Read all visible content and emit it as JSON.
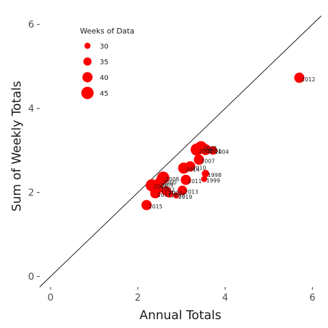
{
  "chart_data": {
    "type": "scatter",
    "title": "",
    "xlabel": "Annual Totals",
    "ylabel": "Sum of Weekly Totals",
    "xlim": [
      -0.25,
      6.2
    ],
    "ylim": [
      -0.25,
      6.45
    ],
    "x_ticks": [
      0,
      2,
      4,
      6
    ],
    "y_ticks": [
      0,
      2,
      4,
      6
    ],
    "grid": false,
    "reference_line": "y = x",
    "point_color": "#ff0000",
    "legend": {
      "title": "Weeks of Data",
      "placement": "top-left",
      "entries": [
        {
          "label": "30",
          "weeks": 30
        },
        {
          "label": "35",
          "weeks": 35
        },
        {
          "label": "40",
          "weeks": 40
        },
        {
          "label": "45",
          "weeks": 45
        }
      ]
    },
    "points": [
      {
        "label": "2012",
        "x": 5.7,
        "y": 4.73,
        "weeks": 40
      },
      {
        "label": "2005",
        "x": 3.45,
        "y": 3.08,
        "weeks": 44
      },
      {
        "label": "2001",
        "x": 3.55,
        "y": 3.02,
        "weeks": 42
      },
      {
        "label": "2004",
        "x": 3.72,
        "y": 3.0,
        "weeks": 36
      },
      {
        "label": "2006",
        "x": 3.35,
        "y": 3.02,
        "weeks": 45
      },
      {
        "label": "2007",
        "x": 3.4,
        "y": 2.78,
        "weeks": 40
      },
      {
        "label": "2010",
        "x": 3.2,
        "y": 2.62,
        "weeks": 40
      },
      {
        "label": "1998",
        "x": 3.55,
        "y": 2.45,
        "weeks": 33
      },
      {
        "label": "1999",
        "x": 3.52,
        "y": 2.32,
        "weeks": 30
      },
      {
        "label": "2011",
        "x": 3.1,
        "y": 2.3,
        "weeks": 40
      },
      {
        "label": "2014",
        "x": 3.05,
        "y": 2.58,
        "weeks": 42
      },
      {
        "label": "2008",
        "x": 2.58,
        "y": 2.35,
        "weeks": 45
      },
      {
        "label": "2000",
        "x": 2.52,
        "y": 2.27,
        "weeks": 40
      },
      {
        "label": "2009",
        "x": 2.45,
        "y": 2.21,
        "weeks": 36
      },
      {
        "label": "2016",
        "x": 2.32,
        "y": 2.17,
        "weeks": 45
      },
      {
        "label": "2002",
        "x": 2.48,
        "y": 2.1,
        "weeks": 38
      },
      {
        "label": "2003",
        "x": 2.65,
        "y": 2.03,
        "weeks": 38
      },
      {
        "label": "2017",
        "x": 2.4,
        "y": 1.98,
        "weeks": 40
      },
      {
        "label": "2013",
        "x": 3.02,
        "y": 2.05,
        "weeks": 38
      },
      {
        "label": "2019",
        "x": 2.88,
        "y": 1.93,
        "weeks": 30
      },
      {
        "label": "2018",
        "x": 2.72,
        "y": 1.97,
        "weeks": 34
      },
      {
        "label": "2015",
        "x": 2.2,
        "y": 1.7,
        "weeks": 40
      }
    ]
  }
}
